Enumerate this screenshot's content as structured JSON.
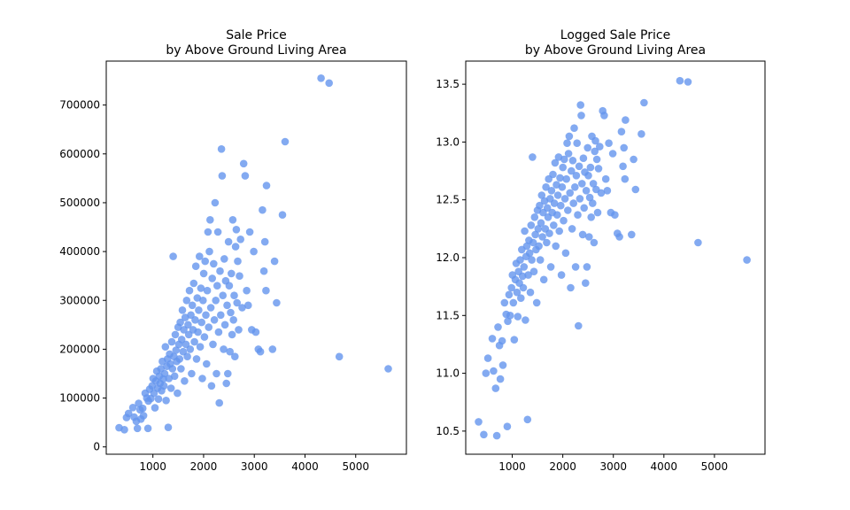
{
  "chart_data": [
    {
      "type": "scatter",
      "title_line1": "Sale Price",
      "title_line2": "by Above Ground Living Area",
      "xlabel": "",
      "ylabel": "",
      "xlim": [
        80,
        6000
      ],
      "ylim": [
        -15000,
        790000
      ],
      "xticks": [
        1000,
        2000,
        3000,
        4000,
        5000
      ],
      "yticks": [
        0,
        100000,
        200000,
        300000,
        400000,
        500000,
        600000,
        700000
      ],
      "xtick_labels": [
        "1000",
        "2000",
        "3000",
        "4000",
        "5000"
      ],
      "ytick_labels": [
        "0",
        "100000",
        "200000",
        "300000",
        "400000",
        "500000",
        "600000",
        "700000"
      ],
      "grid": false,
      "color": "#6495ED",
      "points": [
        [
          334,
          39300
        ],
        [
          438,
          35311
        ],
        [
          480,
          60000
        ],
        [
          520,
          68500
        ],
        [
          605,
          80500
        ],
        [
          630,
          61000
        ],
        [
          672,
          52500
        ],
        [
          694,
          37900
        ],
        [
          720,
          89000
        ],
        [
          747,
          76000
        ],
        [
          764,
          57000
        ],
        [
          800,
          79000
        ],
        [
          816,
          64000
        ],
        [
          848,
          110000
        ],
        [
          880,
          100000
        ],
        [
          902,
          37900
        ],
        [
          912,
          94000
        ],
        [
          936,
          118000
        ],
        [
          960,
          99000
        ],
        [
          985,
          125000
        ],
        [
          1004,
          140000
        ],
        [
          1022,
          110000
        ],
        [
          1040,
          80000
        ],
        [
          1060,
          135000
        ],
        [
          1078,
          155000
        ],
        [
          1094,
          120000
        ],
        [
          1110,
          98000
        ],
        [
          1126,
          145000
        ],
        [
          1142,
          130000
        ],
        [
          1158,
          160000
        ],
        [
          1172,
          115000
        ],
        [
          1188,
          175000
        ],
        [
          1204,
          139000
        ],
        [
          1218,
          125000
        ],
        [
          1232,
          150000
        ],
        [
          1246,
          205000
        ],
        [
          1260,
          95000
        ],
        [
          1274,
          165000
        ],
        [
          1288,
          180000
        ],
        [
          1302,
          40000
        ],
        [
          1316,
          140000
        ],
        [
          1330,
          190000
        ],
        [
          1344,
          170000
        ],
        [
          1358,
          120000
        ],
        [
          1372,
          215000
        ],
        [
          1386,
          160000
        ],
        [
          1400,
          390000
        ],
        [
          1414,
          185000
        ],
        [
          1428,
          145000
        ],
        [
          1442,
          230000
        ],
        [
          1456,
          198000
        ],
        [
          1470,
          175000
        ],
        [
          1484,
          110000
        ],
        [
          1498,
          245000
        ],
        [
          1512,
          210000
        ],
        [
          1526,
          180000
        ],
        [
          1540,
          255000
        ],
        [
          1554,
          160000
        ],
        [
          1568,
          220000
        ],
        [
          1582,
          280000
        ],
        [
          1596,
          195000
        ],
        [
          1610,
          240000
        ],
        [
          1624,
          135000
        ],
        [
          1638,
          265000
        ],
        [
          1652,
          210000
        ],
        [
          1666,
          300000
        ],
        [
          1680,
          185000
        ],
        [
          1694,
          250000
        ],
        [
          1708,
          230000
        ],
        [
          1722,
          320000
        ],
        [
          1736,
          200000
        ],
        [
          1750,
          270000
        ],
        [
          1764,
          150000
        ],
        [
          1778,
          290000
        ],
        [
          1792,
          240000
        ],
        [
          1806,
          335000
        ],
        [
          1820,
          215000
        ],
        [
          1834,
          260000
        ],
        [
          1848,
          370000
        ],
        [
          1862,
          180000
        ],
        [
          1876,
          305000
        ],
        [
          1890,
          235000
        ],
        [
          1904,
          280000
        ],
        [
          1918,
          390000
        ],
        [
          1932,
          205000
        ],
        [
          1946,
          325000
        ],
        [
          1960,
          255000
        ],
        [
          1974,
          140000
        ],
        [
          1988,
          300000
        ],
        [
          2002,
          355000
        ],
        [
          2016,
          225000
        ],
        [
          2030,
          380000
        ],
        [
          2044,
          270000
        ],
        [
          2058,
          170000
        ],
        [
          2072,
          320000
        ],
        [
          2086,
          440000
        ],
        [
          2100,
          245000
        ],
        [
          2114,
          400000
        ],
        [
          2128,
          465000
        ],
        [
          2142,
          285000
        ],
        [
          2156,
          125000
        ],
        [
          2170,
          345000
        ],
        [
          2184,
          210000
        ],
        [
          2198,
          375000
        ],
        [
          2212,
          260000
        ],
        [
          2226,
          500000
        ],
        [
          2240,
          300000
        ],
        [
          2254,
          150000
        ],
        [
          2268,
          330000
        ],
        [
          2282,
          440000
        ],
        [
          2296,
          235000
        ],
        [
          2310,
          90000
        ],
        [
          2324,
          360000
        ],
        [
          2338,
          270000
        ],
        [
          2352,
          610000
        ],
        [
          2366,
          555000
        ],
        [
          2380,
          310000
        ],
        [
          2394,
          200000
        ],
        [
          2408,
          385000
        ],
        [
          2422,
          250000
        ],
        [
          2436,
          340000
        ],
        [
          2450,
          130000
        ],
        [
          2464,
          290000
        ],
        [
          2478,
          150000
        ],
        [
          2492,
          420000
        ],
        [
          2506,
          330000
        ],
        [
          2520,
          195000
        ],
        [
          2534,
          275000
        ],
        [
          2548,
          355000
        ],
        [
          2562,
          230000
        ],
        [
          2576,
          465000
        ],
        [
          2590,
          260000
        ],
        [
          2604,
          310000
        ],
        [
          2618,
          185000
        ],
        [
          2632,
          410000
        ],
        [
          2646,
          445000
        ],
        [
          2660,
          295000
        ],
        [
          2674,
          380000
        ],
        [
          2690,
          240000
        ],
        [
          2708,
          350000
        ],
        [
          2730,
          425000
        ],
        [
          2760,
          285000
        ],
        [
          2790,
          580000
        ],
        [
          2820,
          555000
        ],
        [
          2850,
          320000
        ],
        [
          2880,
          290000
        ],
        [
          2910,
          440000
        ],
        [
          2950,
          240000
        ],
        [
          2990,
          400000
        ],
        [
          3030,
          235000
        ],
        [
          3080,
          200000
        ],
        [
          3120,
          195000
        ],
        [
          3160,
          485000
        ],
        [
          3190,
          360000
        ],
        [
          3210,
          420000
        ],
        [
          3230,
          320000
        ],
        [
          3240,
          535000
        ],
        [
          3360,
          200000
        ],
        [
          3400,
          380000
        ],
        [
          3440,
          295000
        ],
        [
          3555,
          475000
        ],
        [
          3608,
          625000
        ],
        [
          4316,
          755000
        ],
        [
          4476,
          745000
        ],
        [
          4676,
          184750
        ],
        [
          5642,
          160000
        ]
      ]
    },
    {
      "type": "scatter",
      "title_line1": "Logged Sale Price",
      "title_line2": "by Above Ground Living Area",
      "xlabel": "",
      "ylabel": "",
      "xlim": [
        80,
        6000
      ],
      "ylim": [
        10.3,
        13.7
      ],
      "xticks": [
        1000,
        2000,
        3000,
        4000,
        5000
      ],
      "yticks": [
        10.5,
        11.0,
        11.5,
        12.0,
        12.5,
        13.0,
        13.5
      ],
      "xtick_labels": [
        "1000",
        "2000",
        "3000",
        "4000",
        "5000"
      ],
      "ytick_labels": [
        "10.5",
        "11.0",
        "11.5",
        "12.0",
        "12.5",
        "13.0",
        "13.5"
      ],
      "grid": false,
      "color": "#6495ED",
      "points": [
        [
          334,
          10.58
        ],
        [
          438,
          10.47
        ],
        [
          480,
          11.0
        ],
        [
          520,
          11.13
        ],
        [
          605,
          11.3
        ],
        [
          630,
          11.02
        ],
        [
          672,
          10.87
        ],
        [
          694,
          10.46
        ],
        [
          720,
          11.4
        ],
        [
          747,
          11.24
        ],
        [
          764,
          10.95
        ],
        [
          800,
          11.28
        ],
        [
          816,
          11.07
        ],
        [
          848,
          11.61
        ],
        [
          880,
          11.51
        ],
        [
          902,
          10.54
        ],
        [
          912,
          11.45
        ],
        [
          936,
          11.68
        ],
        [
          960,
          11.5
        ],
        [
          985,
          11.74
        ],
        [
          1004,
          11.85
        ],
        [
          1022,
          11.61
        ],
        [
          1040,
          11.29
        ],
        [
          1060,
          11.81
        ],
        [
          1078,
          11.95
        ],
        [
          1094,
          11.7
        ],
        [
          1110,
          11.49
        ],
        [
          1126,
          11.88
        ],
        [
          1142,
          11.78
        ],
        [
          1158,
          11.98
        ],
        [
          1172,
          11.65
        ],
        [
          1188,
          12.07
        ],
        [
          1204,
          11.84
        ],
        [
          1218,
          11.74
        ],
        [
          1232,
          11.92
        ],
        [
          1246,
          12.23
        ],
        [
          1260,
          11.46
        ],
        [
          1274,
          12.01
        ],
        [
          1288,
          12.1
        ],
        [
          1302,
          10.6
        ],
        [
          1316,
          11.85
        ],
        [
          1330,
          12.15
        ],
        [
          1344,
          12.04
        ],
        [
          1358,
          11.7
        ],
        [
          1372,
          12.28
        ],
        [
          1386,
          11.98
        ],
        [
          1400,
          12.87
        ],
        [
          1414,
          12.13
        ],
        [
          1428,
          11.88
        ],
        [
          1442,
          12.35
        ],
        [
          1456,
          12.2
        ],
        [
          1470,
          12.07
        ],
        [
          1484,
          11.61
        ],
        [
          1498,
          12.41
        ],
        [
          1512,
          12.25
        ],
        [
          1526,
          12.1
        ],
        [
          1540,
          12.45
        ],
        [
          1554,
          11.98
        ],
        [
          1568,
          12.3
        ],
        [
          1582,
          12.54
        ],
        [
          1596,
          12.18
        ],
        [
          1610,
          12.39
        ],
        [
          1624,
          11.81
        ],
        [
          1638,
          12.49
        ],
        [
          1652,
          12.25
        ],
        [
          1666,
          12.61
        ],
        [
          1680,
          12.13
        ],
        [
          1694,
          12.43
        ],
        [
          1708,
          12.35
        ],
        [
          1722,
          12.68
        ],
        [
          1736,
          12.21
        ],
        [
          1750,
          12.51
        ],
        [
          1764,
          11.92
        ],
        [
          1778,
          12.58
        ],
        [
          1792,
          12.39
        ],
        [
          1806,
          12.72
        ],
        [
          1820,
          12.28
        ],
        [
          1834,
          12.47
        ],
        [
          1848,
          12.82
        ],
        [
          1862,
          12.1
        ],
        [
          1876,
          12.63
        ],
        [
          1890,
          12.37
        ],
        [
          1904,
          12.54
        ],
        [
          1918,
          12.87
        ],
        [
          1932,
          12.23
        ],
        [
          1946,
          12.69
        ],
        [
          1960,
          12.45
        ],
        [
          1974,
          11.85
        ],
        [
          1988,
          12.61
        ],
        [
          2002,
          12.78
        ],
        [
          2016,
          12.32
        ],
        [
          2030,
          12.85
        ],
        [
          2044,
          12.51
        ],
        [
          2058,
          12.04
        ],
        [
          2072,
          12.68
        ],
        [
          2086,
          12.99
        ],
        [
          2100,
          12.41
        ],
        [
          2114,
          12.9
        ],
        [
          2128,
          13.05
        ],
        [
          2142,
          12.56
        ],
        [
          2156,
          11.74
        ],
        [
          2170,
          12.75
        ],
        [
          2184,
          12.25
        ],
        [
          2198,
          12.84
        ],
        [
          2212,
          12.47
        ],
        [
          2226,
          13.12
        ],
        [
          2240,
          12.61
        ],
        [
          2254,
          11.92
        ],
        [
          2268,
          12.71
        ],
        [
          2282,
          12.99
        ],
        [
          2296,
          12.37
        ],
        [
          2310,
          11.41
        ],
        [
          2324,
          12.79
        ],
        [
          2338,
          12.51
        ],
        [
          2352,
          13.32
        ],
        [
          2366,
          13.23
        ],
        [
          2380,
          12.64
        ],
        [
          2394,
          12.2
        ],
        [
          2408,
          12.86
        ],
        [
          2422,
          12.43
        ],
        [
          2436,
          12.74
        ],
        [
          2450,
          11.78
        ],
        [
          2464,
          12.58
        ],
        [
          2478,
          11.92
        ],
        [
          2492,
          12.95
        ],
        [
          2506,
          12.71
        ],
        [
          2520,
          12.18
        ],
        [
          2534,
          12.52
        ],
        [
          2548,
          12.78
        ],
        [
          2562,
          12.35
        ],
        [
          2576,
          13.05
        ],
        [
          2590,
          12.47
        ],
        [
          2604,
          12.64
        ],
        [
          2618,
          12.13
        ],
        [
          2632,
          12.92
        ],
        [
          2646,
          13.01
        ],
        [
          2660,
          12.59
        ],
        [
          2674,
          12.85
        ],
        [
          2690,
          12.39
        ],
        [
          2708,
          12.77
        ],
        [
          2730,
          12.96
        ],
        [
          2760,
          12.56
        ],
        [
          2790,
          13.27
        ],
        [
          2820,
          13.23
        ],
        [
          2850,
          12.68
        ],
        [
          2880,
          12.58
        ],
        [
          2910,
          12.99
        ],
        [
          2950,
          12.39
        ],
        [
          2990,
          12.9
        ],
        [
          3030,
          12.37
        ],
        [
          3080,
          12.21
        ],
        [
          3120,
          12.18
        ],
        [
          3160,
          13.09
        ],
        [
          3190,
          12.79
        ],
        [
          3210,
          12.95
        ],
        [
          3230,
          12.68
        ],
        [
          3240,
          13.19
        ],
        [
          3360,
          12.2
        ],
        [
          3400,
          12.85
        ],
        [
          3440,
          12.59
        ],
        [
          3555,
          13.07
        ],
        [
          3608,
          13.34
        ],
        [
          4316,
          13.53
        ],
        [
          4476,
          13.52
        ],
        [
          4676,
          12.13
        ],
        [
          5642,
          11.98
        ]
      ]
    }
  ]
}
